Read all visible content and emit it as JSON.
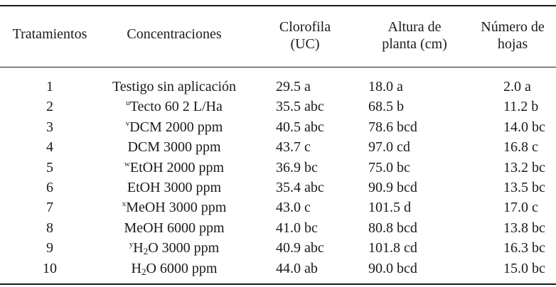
{
  "headers": {
    "tratamientos": "Tratamientos",
    "concentraciones": "Concentraciones",
    "clorofila_l1": "Clorofila",
    "clorofila_l2": "(UC)",
    "altura_l1": "Altura de",
    "altura_l2": "planta (cm)",
    "numero_l1": "Número de",
    "numero_l2": "hojas"
  },
  "rows": [
    {
      "trat": "1",
      "sup": "",
      "pre": "Testigo sin aplicación",
      "sub": "",
      "post": "",
      "cloro": "29.5 a",
      "altura": "18.0 a",
      "hojas": "2.0 a"
    },
    {
      "trat": "2",
      "sup": "u",
      "pre": "Tecto 60 2 L/Ha",
      "sub": "",
      "post": "",
      "cloro": "35.5 abc",
      "altura": "68.5 b",
      "hojas": "11.2 b"
    },
    {
      "trat": "3",
      "sup": "v",
      "pre": "DCM 2000 ppm",
      "sub": "",
      "post": "",
      "cloro": "40.5 abc",
      "altura": "78.6 bcd",
      "hojas": "14.0 bc"
    },
    {
      "trat": "4",
      "sup": "",
      "pre": "DCM 3000 ppm",
      "sub": "",
      "post": "",
      "cloro": "43.7 c",
      "altura": "97.0 cd",
      "hojas": "16.8 c"
    },
    {
      "trat": "5",
      "sup": "w",
      "pre": "EtOH 2000 ppm",
      "sub": "",
      "post": "",
      "cloro": "36.9 bc",
      "altura": "75.0 bc",
      "hojas": "13.2 bc"
    },
    {
      "trat": "6",
      "sup": "",
      "pre": "EtOH 3000 ppm",
      "sub": "",
      "post": "",
      "cloro": "35.4 abc",
      "altura": "90.9 bcd",
      "hojas": "13.5 bc"
    },
    {
      "trat": "7",
      "sup": "x",
      "pre": "MeOH 3000 ppm",
      "sub": "",
      "post": "",
      "cloro": "43.0 c",
      "altura": "101.5 d",
      "hojas": "17.0 c"
    },
    {
      "trat": "8",
      "sup": "",
      "pre": "MeOH 6000 ppm",
      "sub": "",
      "post": "",
      "cloro": "41.0 bc",
      "altura": "80.8 bcd",
      "hojas": "13.8 bc"
    },
    {
      "trat": "9",
      "sup": "y",
      "pre": "H",
      "sub": "2",
      "post": "O 3000 ppm",
      "cloro": "40.9 abc",
      "altura": "101.8 cd",
      "hojas": "16.3 bc"
    },
    {
      "trat": "10",
      "sup": "",
      "pre": "H",
      "sub": "2",
      "post": "O 6000 ppm",
      "cloro": "44.0 ab",
      "altura": "90.0 bcd",
      "hojas": "15.0 bc"
    }
  ]
}
